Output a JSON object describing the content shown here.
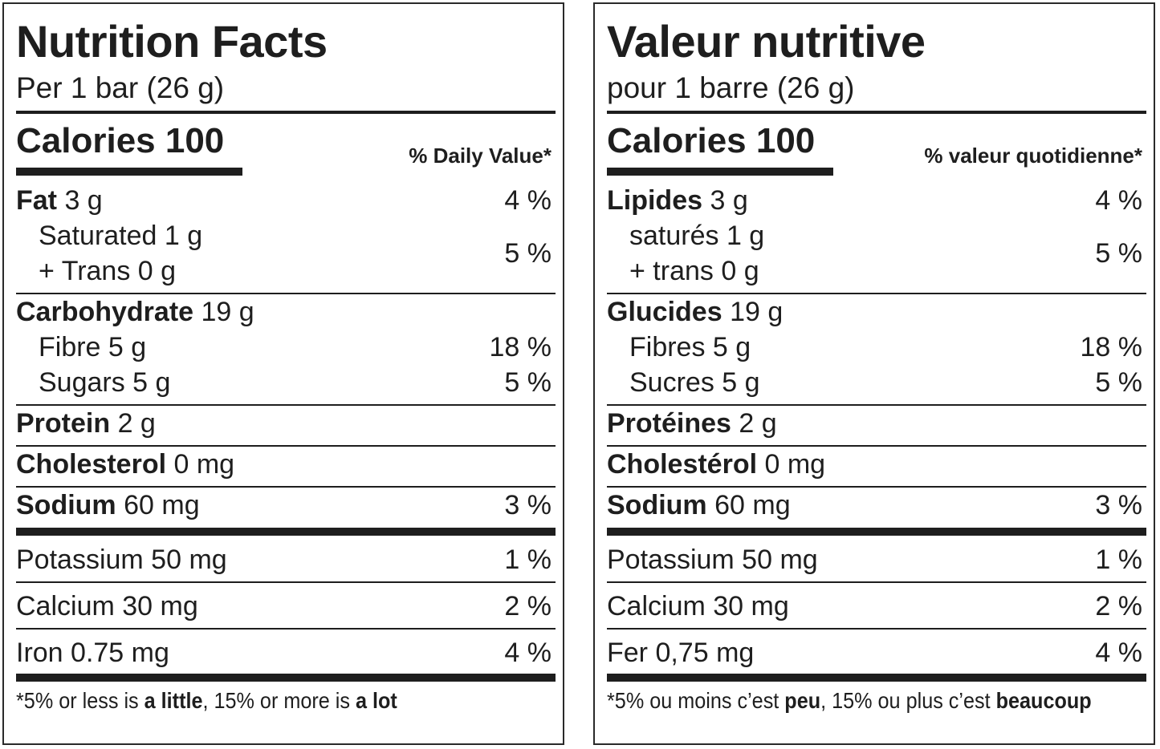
{
  "panels": [
    {
      "title": "Nutrition Facts",
      "serving": "Per 1 bar (26 g)",
      "calories": "Calories 100",
      "dv_header": "% Daily Value*",
      "nutrients": [
        {
          "name": "Fat",
          "amount": "3 g",
          "dv": "4 %",
          "components": [
            {
              "lines": [
                "Saturated 1 g",
                "+ Trans 0 g"
              ],
              "dv": "5 %"
            }
          ]
        },
        {
          "name": "Carbohydrate",
          "amount": "19 g",
          "components": [
            {
              "lines": [
                "Fibre 5 g"
              ],
              "dv": "18 %"
            },
            {
              "lines": [
                "Sugars 5 g"
              ],
              "dv": "5 %"
            }
          ]
        },
        {
          "name": "Protein",
          "amount": "2 g"
        },
        {
          "name": "Cholesterol",
          "amount": "0 mg"
        },
        {
          "name": "Sodium",
          "amount": "60 mg",
          "dv": "3 %"
        }
      ],
      "minerals": [
        {
          "text": "Potassium 50 mg",
          "dv": "1 %"
        },
        {
          "text": "Calcium 30 mg",
          "dv": "2 %"
        },
        {
          "text": "Iron 0.75 mg",
          "dv": "4 %"
        }
      ],
      "footnote": [
        "*5% or less is ",
        "a little",
        ", 15% or more is ",
        "a lot"
      ]
    },
    {
      "title": "Valeur nutritive",
      "serving": "pour 1 barre (26 g)",
      "calories": "Calories 100",
      "dv_header": "% valeur quotidienne*",
      "nutrients": [
        {
          "name": "Lipides",
          "amount": "3 g",
          "dv": "4 %",
          "components": [
            {
              "lines": [
                "saturés 1 g",
                "+ trans 0 g"
              ],
              "dv": "5 %"
            }
          ]
        },
        {
          "name": "Glucides",
          "amount": "19 g",
          "components": [
            {
              "lines": [
                "Fibres 5 g"
              ],
              "dv": "18 %"
            },
            {
              "lines": [
                "Sucres 5 g"
              ],
              "dv": "5 %"
            }
          ]
        },
        {
          "name": "Protéines",
          "amount": "2 g"
        },
        {
          "name": "Cholestérol",
          "amount": "0 mg"
        },
        {
          "name": "Sodium",
          "amount": "60 mg",
          "dv": "3 %"
        }
      ],
      "minerals": [
        {
          "text": "Potassium 50 mg",
          "dv": "1 %"
        },
        {
          "text": "Calcium 30 mg",
          "dv": "2 %"
        },
        {
          "text": "Fer 0,75 mg",
          "dv": "4 %"
        }
      ],
      "footnote": [
        "*5% ou moins c’est ",
        "peu",
        ", 15% ou plus c’est ",
        "beaucoup"
      ]
    }
  ]
}
